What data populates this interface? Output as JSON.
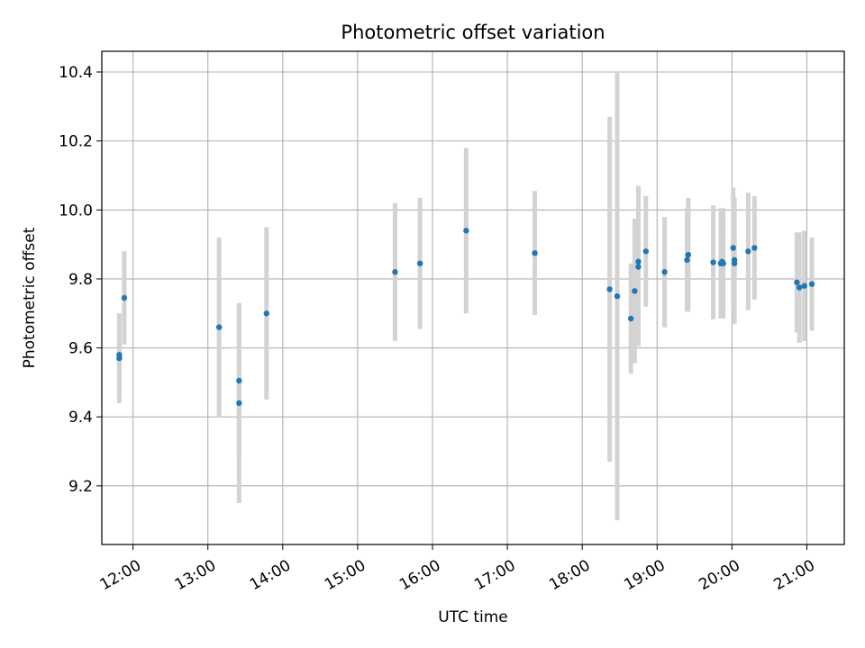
{
  "chart_data": {
    "type": "scatter",
    "title": "Photometric offset variation",
    "xlabel": "UTC time",
    "ylabel": "Photometric offset",
    "x_ticks": [
      "12:00",
      "13:00",
      "14:00",
      "15:00",
      "16:00",
      "17:00",
      "18:00",
      "19:00",
      "20:00",
      "21:00"
    ],
    "xlim": [
      "11:35",
      "21:30"
    ],
    "y_ticks": [
      9.2,
      9.4,
      9.6,
      9.8,
      10.0,
      10.2,
      10.4
    ],
    "ylim": [
      9.03,
      10.46
    ],
    "grid": true,
    "colors": {
      "points": "#1f77b4",
      "errorbars": "#d3d3d3",
      "grid": "#b0b0b0"
    },
    "points": [
      {
        "x": "11:49",
        "y": 9.57,
        "err": 0.13
      },
      {
        "x": "11:49",
        "y": 9.58,
        "err": 0.12
      },
      {
        "x": "11:53",
        "y": 9.745,
        "err": 0.135
      },
      {
        "x": "13:09",
        "y": 9.66,
        "err": 0.26
      },
      {
        "x": "13:25",
        "y": 9.505,
        "err": 0.22
      },
      {
        "x": "13:25",
        "y": 9.44,
        "err": 0.29
      },
      {
        "x": "13:47",
        "y": 9.7,
        "err": 0.25
      },
      {
        "x": "15:30",
        "y": 9.82,
        "err": 0.2
      },
      {
        "x": "15:50",
        "y": 9.845,
        "err": 0.19
      },
      {
        "x": "16:27",
        "y": 9.94,
        "err": 0.24
      },
      {
        "x": "17:22",
        "y": 9.875,
        "err": 0.18
      },
      {
        "x": "18:22",
        "y": 9.77,
        "err": 0.5
      },
      {
        "x": "18:28",
        "y": 9.75,
        "err": 0.65
      },
      {
        "x": "18:39",
        "y": 9.685,
        "err": 0.16
      },
      {
        "x": "18:42",
        "y": 9.765,
        "err": 0.21
      },
      {
        "x": "18:45",
        "y": 9.835,
        "err": 0.23
      },
      {
        "x": "18:45",
        "y": 9.85,
        "err": 0.22
      },
      {
        "x": "18:51",
        "y": 9.88,
        "err": 0.16
      },
      {
        "x": "19:06",
        "y": 9.82,
        "err": 0.16
      },
      {
        "x": "19:24",
        "y": 9.855,
        "err": 0.15
      },
      {
        "x": "19:25",
        "y": 9.87,
        "err": 0.165
      },
      {
        "x": "19:45",
        "y": 9.848,
        "err": 0.165
      },
      {
        "x": "19:51",
        "y": 9.845,
        "err": 0.16
      },
      {
        "x": "19:52",
        "y": 9.85,
        "err": 0.155
      },
      {
        "x": "19:53",
        "y": 9.845,
        "err": 0.16
      },
      {
        "x": "20:01",
        "y": 9.89,
        "err": 0.175
      },
      {
        "x": "20:02",
        "y": 9.845,
        "err": 0.175
      },
      {
        "x": "20:02",
        "y": 9.855,
        "err": 0.18
      },
      {
        "x": "20:13",
        "y": 9.88,
        "err": 0.17
      },
      {
        "x": "20:18",
        "y": 9.89,
        "err": 0.15
      },
      {
        "x": "20:52",
        "y": 9.79,
        "err": 0.145
      },
      {
        "x": "20:54",
        "y": 9.775,
        "err": 0.16
      },
      {
        "x": "20:58",
        "y": 9.78,
        "err": 0.16
      },
      {
        "x": "21:04",
        "y": 9.785,
        "err": 0.135
      }
    ]
  }
}
